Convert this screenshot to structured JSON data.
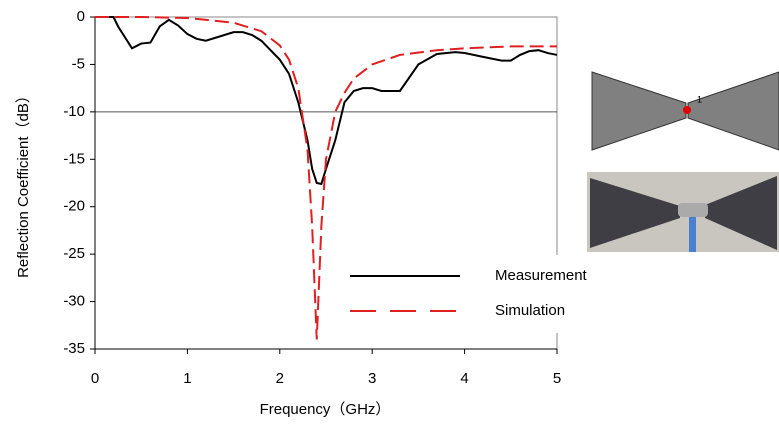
{
  "chart_data": {
    "type": "line",
    "x_label": "Frequency（GHz）",
    "y_label": "Reflection Coefficient（dB）",
    "xlim": [
      0,
      5
    ],
    "xticks": [
      0,
      1,
      2,
      3,
      4,
      5
    ],
    "ylim": [
      -35,
      0
    ],
    "yticks": [
      0,
      -5,
      -10,
      -15,
      -20,
      -25,
      -30,
      -35
    ],
    "hline": -10,
    "legend": "lower right",
    "port_label": "1",
    "series": [
      {
        "name": "Measurement",
        "color": "#000000",
        "dash": false,
        "x": [
          0,
          0.2,
          0.25,
          0.4,
          0.5,
          0.6,
          0.7,
          0.8,
          0.9,
          1.0,
          1.1,
          1.2,
          1.3,
          1.5,
          1.6,
          1.7,
          1.8,
          1.9,
          2.0,
          2.1,
          2.2,
          2.3,
          2.35,
          2.4,
          2.45,
          2.5,
          2.6,
          2.7,
          2.8,
          2.9,
          3.0,
          3.1,
          3.2,
          3.3,
          3.5,
          3.7,
          3.9,
          4.0,
          4.2,
          4.4,
          4.5,
          4.6,
          4.7,
          4.8,
          4.9,
          5.0
        ],
        "values": [
          0,
          0,
          -1,
          -3.3,
          -2.8,
          -2.7,
          -1,
          -0.3,
          -0.9,
          -1.8,
          -2.3,
          -2.5,
          -2.2,
          -1.6,
          -1.6,
          -1.9,
          -2.5,
          -3.5,
          -4.5,
          -6,
          -9,
          -13,
          -16,
          -17.5,
          -17.6,
          -16,
          -13,
          -9,
          -7.8,
          -7.5,
          -7.5,
          -7.8,
          -7.8,
          -7.8,
          -5,
          -3.9,
          -3.7,
          -3.8,
          -4.2,
          -4.6,
          -4.6,
          -4,
          -3.6,
          -3.5,
          -3.8,
          -4
        ]
      },
      {
        "name": "Simulation",
        "color": "#e02020",
        "dash": true,
        "x": [
          0,
          0.5,
          1.0,
          1.5,
          1.8,
          2.0,
          2.1,
          2.2,
          2.3,
          2.35,
          2.4,
          2.45,
          2.5,
          2.6,
          2.7,
          2.8,
          3.0,
          3.3,
          3.7,
          4.0,
          4.5,
          5.0
        ],
        "values": [
          0,
          0,
          -0.1,
          -0.6,
          -1.5,
          -3,
          -4.5,
          -7.5,
          -14,
          -22,
          -34,
          -22,
          -15,
          -10,
          -8,
          -6.5,
          -5,
          -4,
          -3.5,
          -3.3,
          -3.1,
          -3.1
        ]
      }
    ]
  }
}
